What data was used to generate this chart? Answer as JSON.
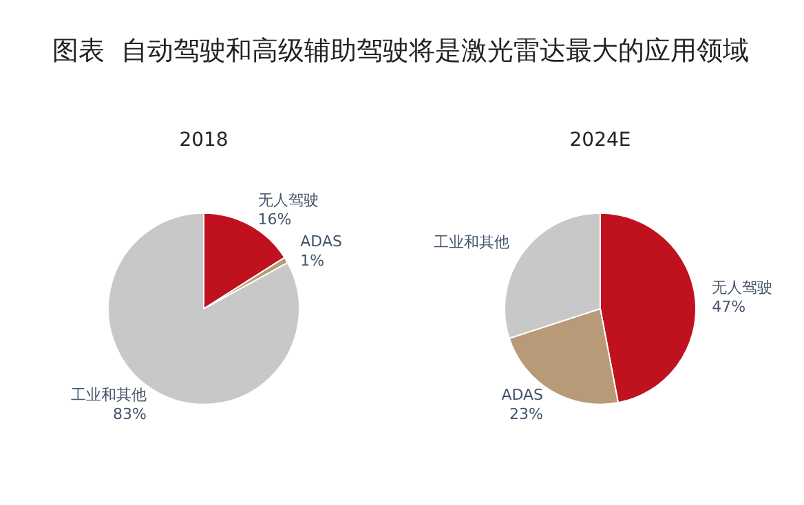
{
  "chart_data": [
    {
      "type": "pie",
      "title": "2018",
      "annotations": [
        "图表  自动驾驶和高级辅助驾驶将是激光雷达最大的应用领域"
      ],
      "categories": [
        "无人驾驶",
        "ADAS",
        "工业和其他"
      ],
      "values": [
        16,
        1,
        83
      ],
      "colors": [
        "#c0111f",
        "#b99a78",
        "#c8c8c8"
      ],
      "value_labels": [
        "16%",
        "1%",
        "83%"
      ],
      "legend": false
    },
    {
      "type": "pie",
      "title": "2024E",
      "categories": [
        "无人驾驶",
        "ADAS",
        "工业和其他"
      ],
      "values": [
        47,
        23,
        30
      ],
      "colors": [
        "#c0111f",
        "#b99a78",
        "#c8c8c8"
      ],
      "value_labels": [
        "47%",
        "23%",
        null
      ],
      "legend": false
    }
  ]
}
